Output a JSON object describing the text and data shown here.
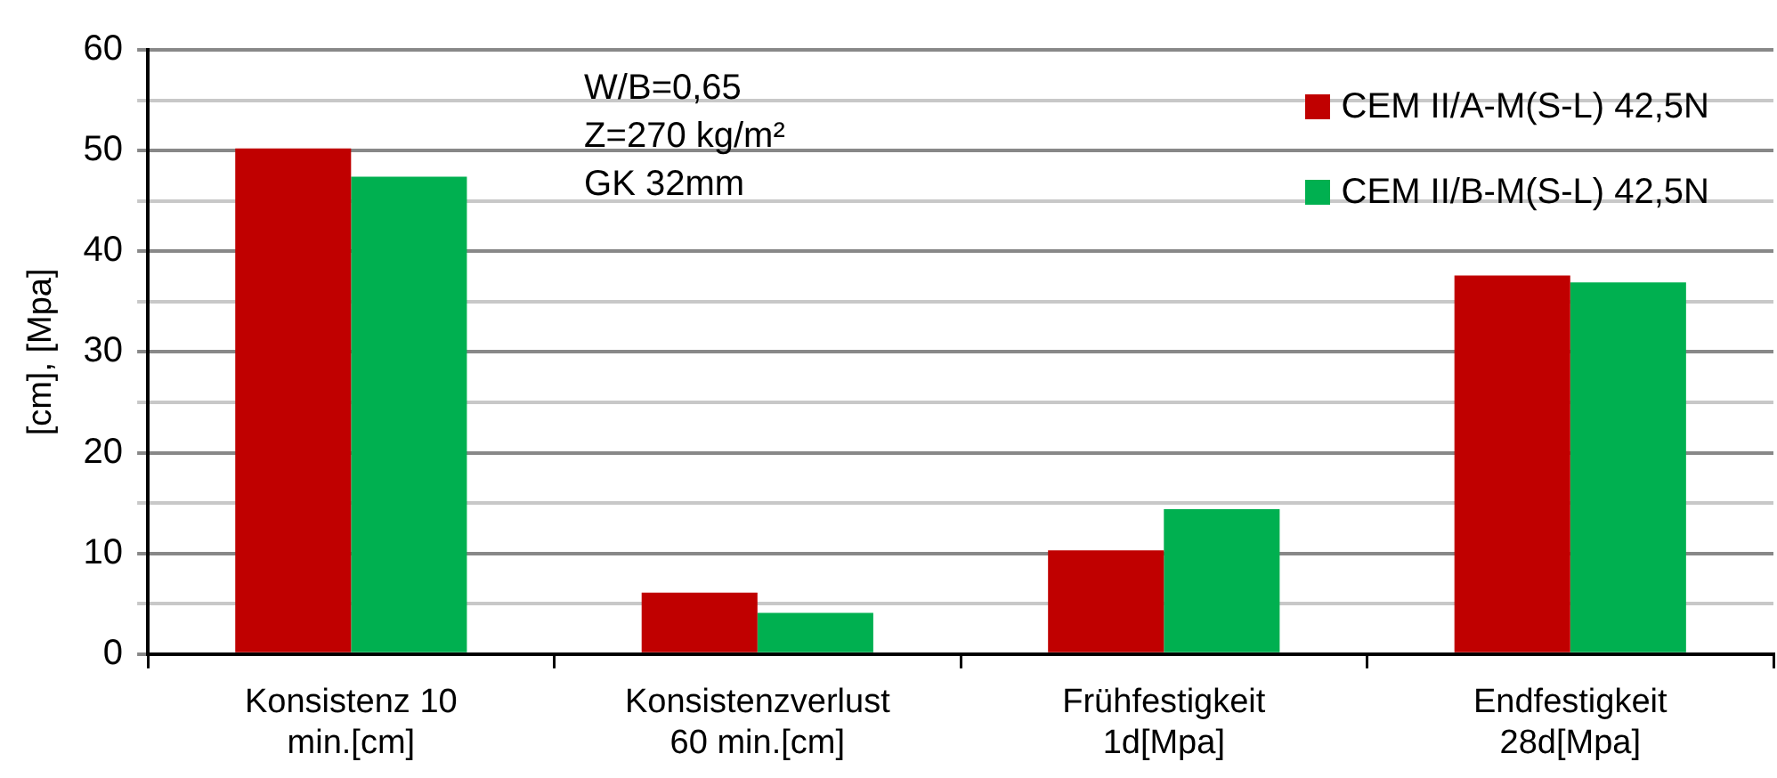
{
  "chart_data": {
    "type": "bar",
    "ylabel": "[cm], [Mpa]",
    "categories": [
      "Konsistenz 10\nmin.[cm]",
      "Konsistenzverlust\n60 min.[cm]",
      "Frühfestigkeit\n1d[Mpa]",
      "Endfestigkeit\n28d[Mpa]"
    ],
    "series": [
      {
        "name": "CEM II/A-M(S-L) 42,5N",
        "color": "#c00000",
        "values": [
          50.2,
          6.1,
          10.3,
          37.6
        ]
      },
      {
        "name": "CEM II/B-M(S-L) 42,5N",
        "color": "#00b050",
        "values": [
          47.4,
          4.1,
          14.4,
          36.9
        ]
      }
    ],
    "ylim": [
      0,
      60
    ],
    "yticks": [
      0,
      {
        "value": 5,
        "label": null
      },
      10,
      {
        "value": 15,
        "label": null
      },
      20,
      {
        "value": 25,
        "label": null
      },
      30,
      {
        "value": 35,
        "label": null
      },
      40,
      {
        "value": 45,
        "label": null
      },
      50,
      {
        "value": 55,
        "label": null
      },
      60
    ],
    "grid": "y",
    "legend": "top right",
    "annotations": [
      "W/B=0,65\nZ=270 kg/m²\nGK 32mm"
    ]
  }
}
